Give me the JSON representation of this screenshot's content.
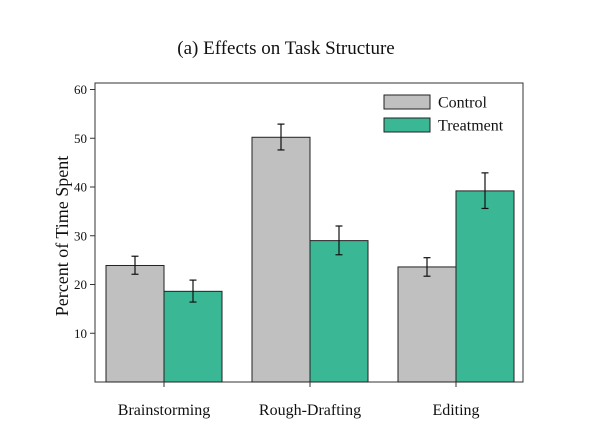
{
  "chart_data": {
    "type": "bar",
    "title": "(a) Effects on Task Structure",
    "xlabel": "",
    "ylabel": "Percent of Time Spent",
    "ylim": [
      0,
      62
    ],
    "yticks": [
      10,
      20,
      30,
      40,
      50,
      60
    ],
    "categories": [
      "Brainstorming",
      "Rough-Drafting",
      "Editing"
    ],
    "series": [
      {
        "name": "Control",
        "color": "#c0c0c0",
        "values": [
          23.9,
          50.2,
          23.6
        ],
        "error_low": [
          22.1,
          47.6,
          21.7
        ],
        "error_high": [
          25.8,
          52.9,
          25.5
        ]
      },
      {
        "name": "Treatment",
        "color": "#3ab795",
        "values": [
          18.6,
          29.0,
          39.2
        ],
        "error_low": [
          16.4,
          26.1,
          35.6
        ],
        "error_high": [
          20.9,
          32.0,
          42.9
        ]
      }
    ],
    "grid": false,
    "legend_position": "top-right"
  }
}
